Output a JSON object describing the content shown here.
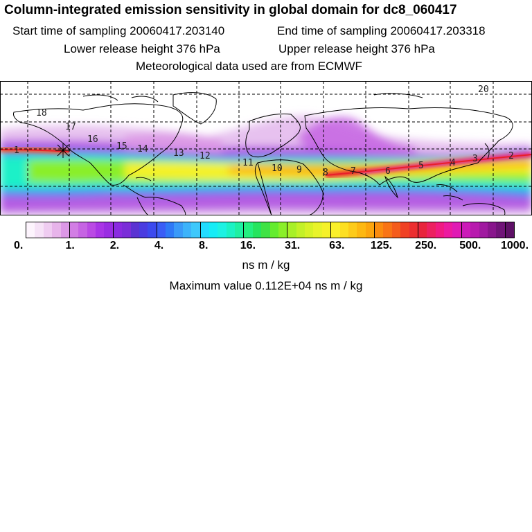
{
  "header": {
    "title": "Column-integrated emission sensitivity in global domain for dc8_060417",
    "start_time": "Start time of sampling 20060417.203140",
    "end_time": "End time of sampling 20060417.203318",
    "lower_release": "Lower release height  376 hPa",
    "upper_release": "Upper release height  376 hPa",
    "met_data": "Meteorological data used are from ECMWF"
  },
  "map": {
    "time_markers": [
      "1",
      "2",
      "3",
      "4",
      "5",
      "6",
      "7",
      "8",
      "9",
      "10",
      "11",
      "12",
      "13",
      "14",
      "15",
      "16",
      "17",
      "18",
      "20"
    ],
    "colors": {
      "land_outline": "#000000",
      "graticule": "#000000",
      "trajectory_core": "#e8202a",
      "background": "#ffffff"
    }
  },
  "colorbar": {
    "tick_labels": [
      "0.",
      "1.",
      "2.",
      "4.",
      "8.",
      "16.",
      "31.",
      "63.",
      "125.",
      "250.",
      "500.",
      "1000."
    ],
    "colors": [
      "#fdf4fd",
      "#f6e2f7",
      "#efccf1",
      "#e7b4ea",
      "#dc98e6",
      "#d27ee4",
      "#c664e3",
      "#ba4ae4",
      "#a935e6",
      "#9a2de2",
      "#8a2be0",
      "#7b2ed8",
      "#5b33d2",
      "#4a3ce0",
      "#3c4aee",
      "#3a5df6",
      "#2f79f6",
      "#3a9af8",
      "#3db3fa",
      "#3ec8fb",
      "#22dcff",
      "#17ecf6",
      "#1ef2e3",
      "#1cf2c4",
      "#1ff0a2",
      "#24ef80",
      "#26e45e",
      "#3fe245",
      "#64ec2f",
      "#8aef29",
      "#a8f027",
      "#c3f127",
      "#d7f227",
      "#e8f32a",
      "#f5f12a",
      "#faf02a",
      "#fddf22",
      "#fdcb1a",
      "#fdb812",
      "#fca50e",
      "#fa8c10",
      "#f87416",
      "#f45c1c",
      "#f04224",
      "#ec2e30",
      "#e8243c",
      "#ec2060",
      "#f01a82",
      "#ec1aa0",
      "#e01ab4",
      "#cc1ab8",
      "#b81aae",
      "#a01aa0",
      "#88168c",
      "#701478",
      "#5e1066"
    ],
    "units": "ns m / kg",
    "max_value": "Maximum value  0.112E+04 ns m / kg"
  }
}
